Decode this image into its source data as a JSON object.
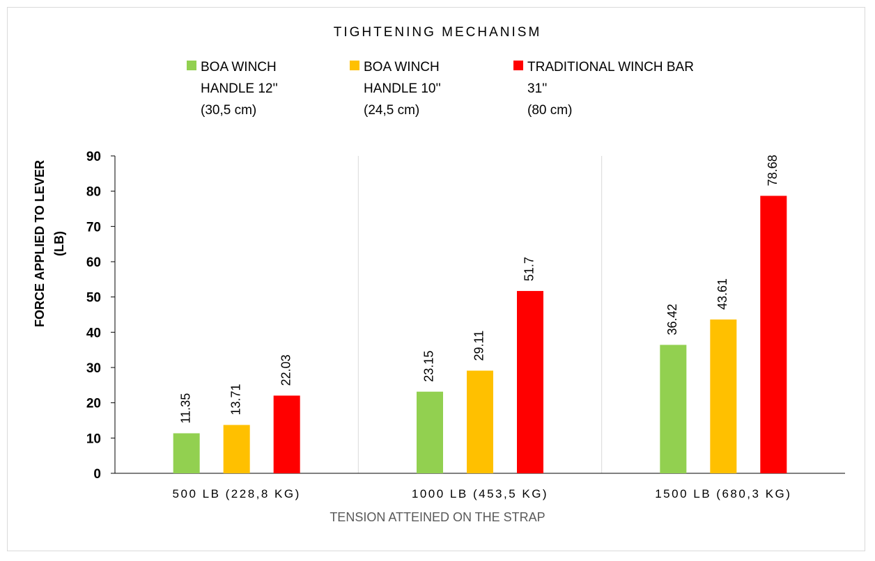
{
  "chart_data": {
    "type": "bar",
    "title": "TIGHTENING MECHANISM",
    "xlabel": "TENSION ATTEINED ON THE STRAP",
    "ylabel": "FORCE APPLIED TO LEVER\n(LB)",
    "categories": [
      "500 LB (228,8 KG)",
      "1000 LB (453,5 KG)",
      "1500 LB (680,3 KG)"
    ],
    "ylim": [
      0,
      90
    ],
    "yticks": [
      0,
      10,
      20,
      30,
      40,
      50,
      60,
      70,
      80,
      90
    ],
    "grid": false,
    "legend_position": "top",
    "series": [
      {
        "name": "BOA WINCH\nHANDLE 12''\n(30,5 cm)",
        "color": "#92d050",
        "values": [
          11.35,
          23.15,
          36.42
        ],
        "labels": [
          "11.35",
          "23.15",
          "36.42"
        ]
      },
      {
        "name": "BOA WINCH\nHANDLE 10''\n(24,5 cm)",
        "color": "#ffc000",
        "values": [
          13.71,
          29.11,
          43.61
        ],
        "labels": [
          "13.71",
          "29.11",
          "43.61"
        ]
      },
      {
        "name": "TRADITIONAL WINCH BAR\n31''\n(80 cm)",
        "color": "#ff0000",
        "values": [
          22.03,
          51.7,
          78.68
        ],
        "labels": [
          "22.03",
          "51.7",
          "78.68"
        ]
      }
    ]
  }
}
